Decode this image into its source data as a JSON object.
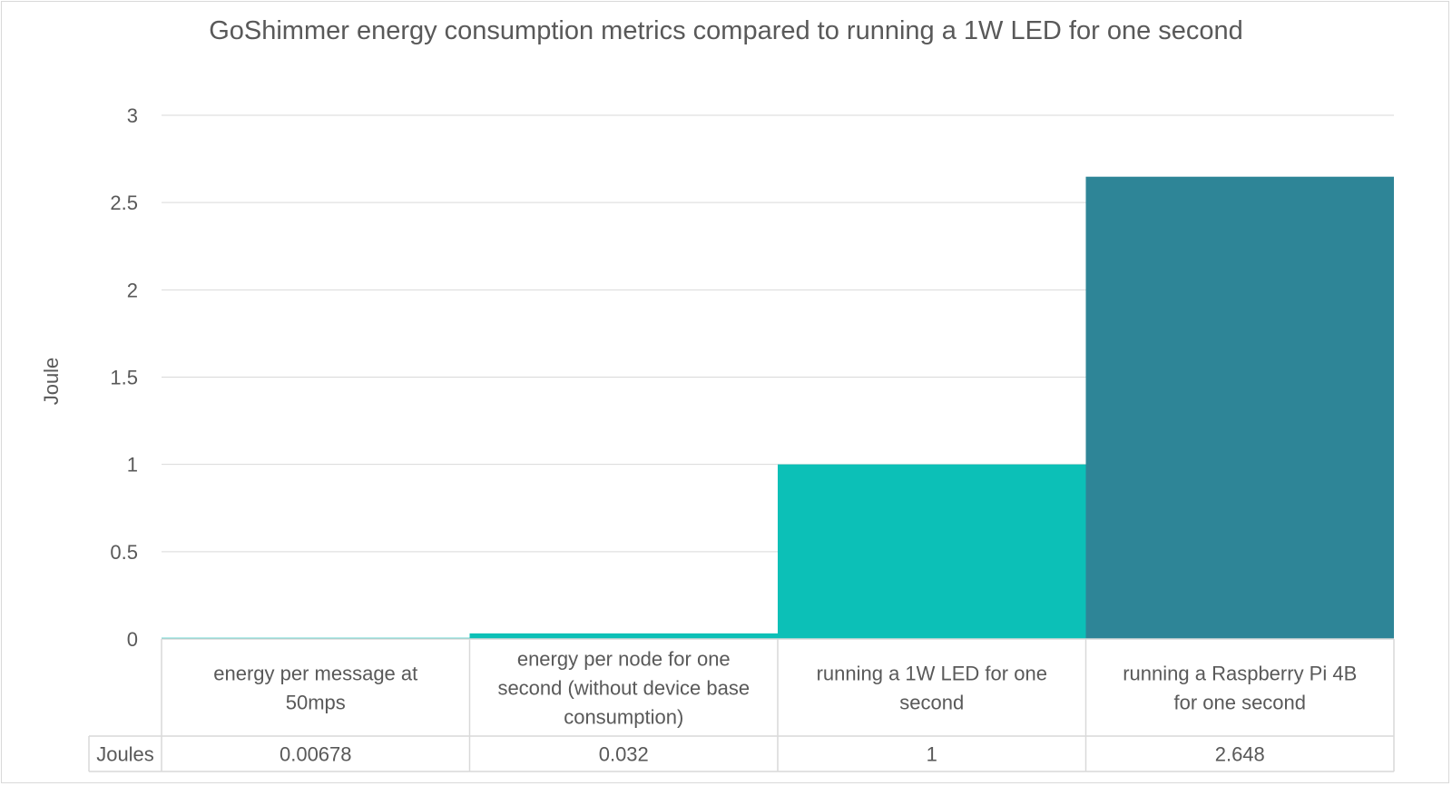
{
  "chart_data": {
    "type": "bar",
    "title": "GoShimmer energy consumption metrics compared to running a 1W LED for one second",
    "ylabel": "Joule",
    "xlabel": "",
    "ylim": [
      0,
      3
    ],
    "yticks": [
      "0",
      "0.5",
      "1",
      "1.5",
      "2",
      "2.5",
      "3"
    ],
    "grid": true,
    "categories": [
      [
        "energy per message at",
        "50mps"
      ],
      [
        "energy per node for one",
        "second (without device base",
        "consumption)"
      ],
      [
        "running a 1W LED for one",
        "second"
      ],
      [
        "running a Raspberry Pi 4B",
        "for one second"
      ]
    ],
    "series": [
      {
        "name": "Joules",
        "values": [
          0.00678,
          0.032,
          1,
          2.648
        ]
      }
    ],
    "value_labels": [
      "0.00678",
      "0.032",
      "1",
      "2.648"
    ],
    "bar_colors": [
      "#0cc0b7",
      "#0cc0b7",
      "#0cc0b7",
      "#2e8597"
    ],
    "data_table": true
  }
}
